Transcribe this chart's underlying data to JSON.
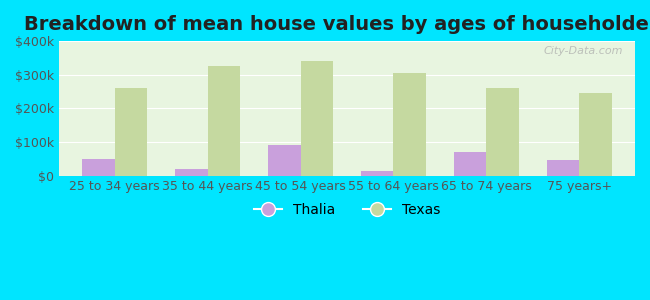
{
  "title": "Breakdown of mean house values by ages of householders",
  "categories": [
    "25 to 34 years",
    "35 to 44 years",
    "45 to 54 years",
    "55 to 64 years",
    "65 to 74 years",
    "75 years+"
  ],
  "thalia_values": [
    50000,
    20000,
    90000,
    15000,
    70000,
    45000
  ],
  "texas_values": [
    260000,
    325000,
    340000,
    305000,
    260000,
    245000
  ],
  "thalia_color": "#c9a0dc",
  "texas_color": "#c5d9a0",
  "background_outer": "#00e5ff",
  "background_inner": "#e8f5e0",
  "legend_thalia": "Thalia",
  "legend_texas": "Texas",
  "ylim": [
    0,
    400000
  ],
  "yticks": [
    0,
    100000,
    200000,
    300000,
    400000
  ],
  "ytick_labels": [
    "$0",
    "$100k",
    "$200k",
    "$300k",
    "$400k"
  ],
  "bar_width": 0.35,
  "title_fontsize": 14,
  "tick_fontsize": 9,
  "legend_fontsize": 10,
  "watermark": "City-Data.com"
}
